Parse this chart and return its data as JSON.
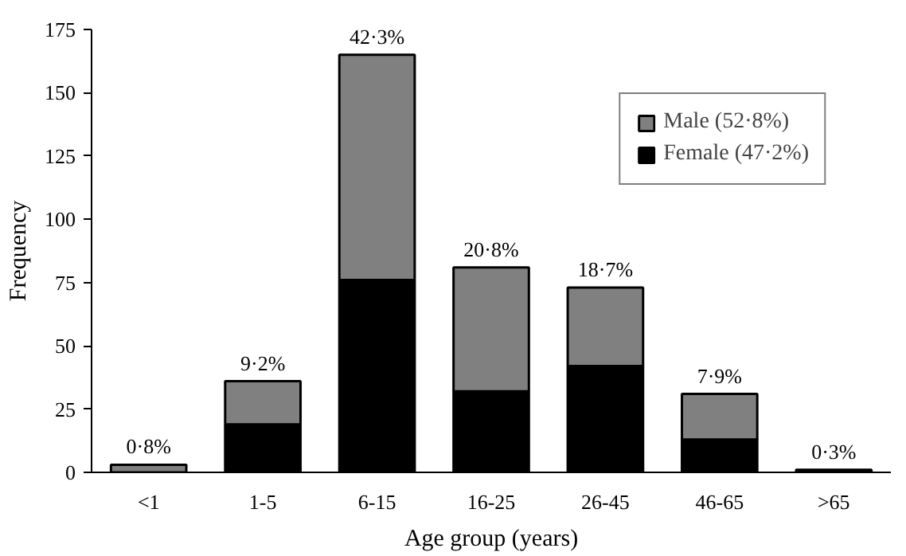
{
  "chart_data": {
    "type": "bar",
    "stacked": true,
    "xlabel": "Age group (years)",
    "ylabel": "Frequency",
    "categories": [
      "<1",
      "1-5",
      "6-15",
      "16-25",
      "26-45",
      "46-65",
      ">65"
    ],
    "series": [
      {
        "name": "Female (47·2%)",
        "color": "#000000",
        "values": [
          0,
          19,
          76,
          32,
          42,
          13,
          1
        ]
      },
      {
        "name": "Male (52·8%)",
        "color": "#808080",
        "values": [
          3,
          17,
          89,
          49,
          31,
          18,
          0
        ]
      }
    ],
    "totals": [
      "0·8%",
      "9·2%",
      "42·3%",
      "20·8%",
      "18·7%",
      "7·9%",
      "0·3%"
    ],
    "ylim": [
      0,
      175
    ],
    "yticks": [
      0,
      25,
      50,
      75,
      100,
      125,
      150,
      175
    ],
    "grid": false,
    "legend": "top right"
  }
}
